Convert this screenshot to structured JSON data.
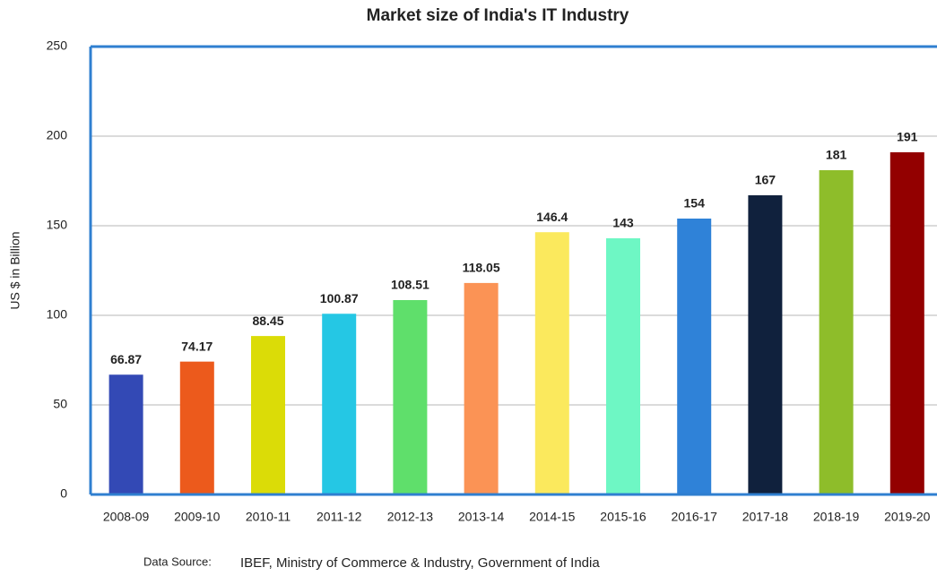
{
  "chart_data": {
    "type": "bar",
    "title": "Market size of India's IT Industry",
    "y_label": "US $ in Billion",
    "source_label": "Data Source:",
    "source": "IBEF, Ministry of Commerce & Industry, Government of India",
    "categories": [
      "2008-09",
      "2009-10",
      "2010-11",
      "2011-12",
      "2012-13",
      "2013-14",
      "2014-15",
      "2015-16",
      "2016-17",
      "2017-18",
      "2018-19",
      "2019-20"
    ],
    "values": [
      66.87,
      74.17,
      88.45,
      100.87,
      108.51,
      118.05,
      146.4,
      143,
      154,
      167,
      181,
      191
    ],
    "colors": [
      "#3349b5",
      "#ec5a1c",
      "#dbdc07",
      "#25c7e4",
      "#5fdf6b",
      "#fb9355",
      "#fbe95d",
      "#6ef7c4",
      "#2f82d8",
      "#10213d",
      "#8ebd2a",
      "#930000"
    ],
    "ylim": [
      0,
      250
    ],
    "yticks": [
      0,
      50,
      100,
      150,
      200,
      250
    ],
    "grid": true
  }
}
